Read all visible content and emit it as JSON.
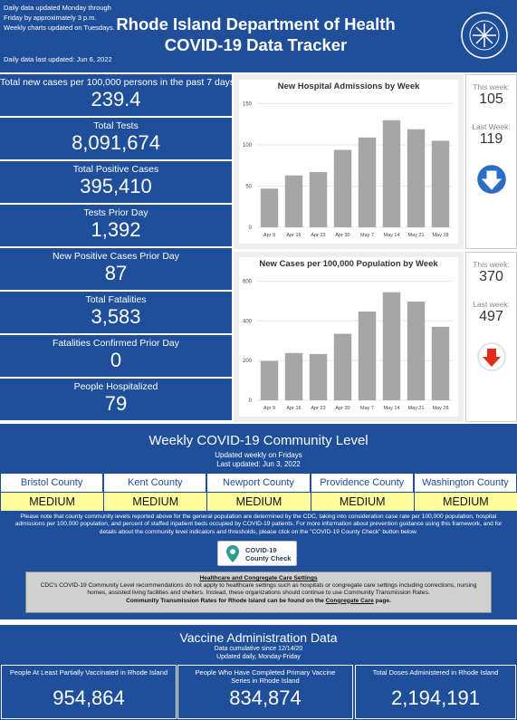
{
  "header": {
    "notes": [
      "Daily data updated Monday through",
      "Friday by approximately 3 p.m.",
      "Weekly charts updated on Tuesdays."
    ],
    "last_updated": "Daily data last updated: Jun 6, 2022",
    "title": [
      "Rhode Island Department of Health",
      "COVID-19 Data Tracker"
    ]
  },
  "stats": [
    {
      "label": "Total new cases per 100,000 persons in the past 7 days",
      "value": "239.4"
    },
    {
      "label": "Total Tests",
      "value": "8,091,674"
    },
    {
      "label": "Total Positive Cases",
      "value": "395,410"
    },
    {
      "label": "Tests Prior Day",
      "value": "1,392"
    },
    {
      "label": "New Positive Cases Prior Day",
      "value": "87"
    },
    {
      "label": "Total Fatalities",
      "value": "3,583"
    },
    {
      "label": "Fatalities Confirmed Prior Day",
      "value": "0"
    },
    {
      "label": "People Hospitalized",
      "value": "79"
    }
  ],
  "chart_data": [
    {
      "type": "bar",
      "title": "New Hospital Admissions by Week",
      "categories": [
        "Apr 9",
        "Apr 16",
        "Apr 23",
        "Apr 30",
        "May 7",
        "May 14",
        "May 21",
        "May 28"
      ],
      "values": [
        47,
        63,
        67,
        94,
        109,
        130,
        119,
        105
      ],
      "color": "#a6a6a6",
      "ylim": [
        0,
        155
      ],
      "yticks": [
        0,
        50,
        100,
        150
      ],
      "grid": true
    },
    {
      "type": "bar",
      "title": "New Cases per 100,000 Population by Week",
      "categories": [
        "Apr 9",
        "Apr 16",
        "Apr 23",
        "Apr 30",
        "May 7",
        "May 14",
        "May 21",
        "May 28"
      ],
      "values": [
        198,
        238,
        233,
        335,
        447,
        544,
        497,
        370
      ],
      "color": "#a6a6a6",
      "ylim": [
        0,
        620
      ],
      "yticks": [
        0,
        200,
        400,
        600
      ],
      "grid": true
    }
  ],
  "sidebars": [
    {
      "this_week_label": "This week:",
      "this_week": "105",
      "last_week_label": "Last Week:",
      "last_week": "119"
    },
    {
      "this_week_label": "This week:",
      "this_week": "370",
      "last_week_label": "Last week:",
      "last_week": "497"
    }
  ],
  "community": {
    "title": "Weekly COVID-19 Community Level",
    "updated": [
      "Updated weekly on Fridays",
      "Last updated: Jun 3, 2022"
    ],
    "counties": [
      {
        "name": "Bristol County",
        "level": "MEDIUM"
      },
      {
        "name": "Kent County",
        "level": "MEDIUM"
      },
      {
        "name": "Newport County",
        "level": "MEDIUM"
      },
      {
        "name": "Providence County",
        "level": "MEDIUM"
      },
      {
        "name": "Washington County",
        "level": "MEDIUM"
      }
    ],
    "note": "Please note that county community levels reported above for the general population are determined by the CDC, taking into consideration case rate per 100,000 population, hospital admissions per 100,000 population, and percent of staffed inpatient beds occupied by COVID-19 patients. For more information about prevention guidance using this framework, and for details about the community level indicators and thresholds, please click on the \"COVID-19 County Check\" button below.",
    "button": [
      "COVID-19",
      "County Check"
    ]
  },
  "healthcare": {
    "heading": "Healthcare and Congregate Care Settings",
    "text": "CDC's COVID-19 Community Level recommendations do not apply to healthcare settings such as hospitals or congregate care settings including corrections, nursing homes, assisted living facilities and shelters. Instead, these organizations should continue to use Community Transmission Rates.",
    "link_before": "Community Transmission Rates for Rhode Island can be found on the ",
    "link_text": "Congregate Care",
    "link_after": " page."
  },
  "vaccine": {
    "title": "Vaccine Administration Data",
    "subtitle": [
      "Data cumulative since 12/14/20",
      "Updated daily, Monday-Friday"
    ],
    "stats": [
      {
        "label": "People At Least Partially Vaccinated in Rhode Island",
        "value": "954,864"
      },
      {
        "label": "People Who Have Completed Primary Vaccine Series in Rhode Island",
        "value": "834,874"
      },
      {
        "label": "Total Doses Administered in Rhode Island",
        "value": "2,194,191"
      }
    ]
  }
}
